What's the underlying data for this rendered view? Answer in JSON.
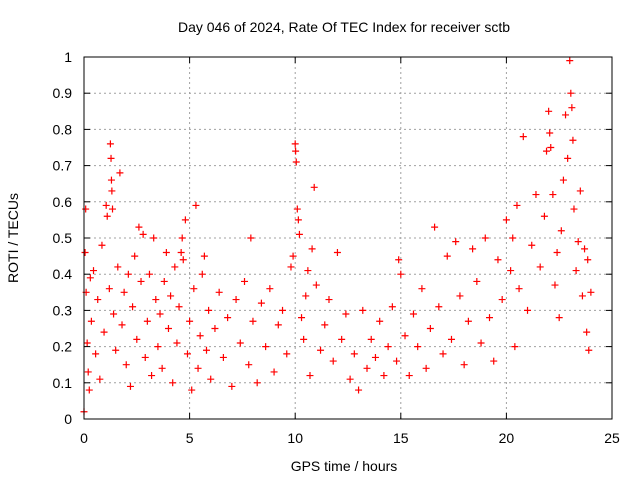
{
  "chart_data": {
    "type": "scatter",
    "title": "Day 046 of 2024, Rate Of TEC Index for receiver sctb",
    "xlabel": "GPS time / hours",
    "ylabel": "ROTI / TECUs",
    "xlim": [
      0,
      25
    ],
    "ylim": [
      0,
      1
    ],
    "x_ticks": [
      0,
      5,
      10,
      15,
      20,
      25
    ],
    "y_ticks": [
      0,
      0.1,
      0.2,
      0.3,
      0.4,
      0.5,
      0.6,
      0.7,
      0.8,
      0.9,
      1
    ],
    "x_tick_labels": [
      "0",
      "5",
      "10",
      "15",
      "20",
      "25"
    ],
    "y_tick_labels": [
      "0",
      "0.1",
      "0.2",
      "0.3",
      "0.4",
      "0.5",
      "0.6",
      "0.7",
      "0.8",
      "0.9",
      "1"
    ],
    "grid": true,
    "marker": "plus",
    "color": "#ff0000",
    "series": [
      {
        "points": [
          [
            0.0,
            0.02
          ],
          [
            0.05,
            0.46
          ],
          [
            0.08,
            0.58
          ],
          [
            0.1,
            0.35
          ],
          [
            0.15,
            0.21
          ],
          [
            0.2,
            0.13
          ],
          [
            0.25,
            0.08
          ],
          [
            0.3,
            0.39
          ],
          [
            0.35,
            0.27
          ],
          [
            0.45,
            0.41
          ],
          [
            0.55,
            0.18
          ],
          [
            0.65,
            0.33
          ],
          [
            0.75,
            0.11
          ],
          [
            0.85,
            0.48
          ],
          [
            0.95,
            0.24
          ],
          [
            1.05,
            0.59
          ],
          [
            1.1,
            0.56
          ],
          [
            1.2,
            0.36
          ],
          [
            1.25,
            0.76
          ],
          [
            1.28,
            0.72
          ],
          [
            1.3,
            0.66
          ],
          [
            1.32,
            0.63
          ],
          [
            1.35,
            0.58
          ],
          [
            1.4,
            0.29
          ],
          [
            1.5,
            0.19
          ],
          [
            1.6,
            0.42
          ],
          [
            1.7,
            0.68
          ],
          [
            1.8,
            0.26
          ],
          [
            1.9,
            0.35
          ],
          [
            2.0,
            0.15
          ],
          [
            2.1,
            0.4
          ],
          [
            2.2,
            0.09
          ],
          [
            2.3,
            0.31
          ],
          [
            2.4,
            0.45
          ],
          [
            2.5,
            0.22
          ],
          [
            2.6,
            0.53
          ],
          [
            2.7,
            0.38
          ],
          [
            2.8,
            0.51
          ],
          [
            2.9,
            0.17
          ],
          [
            3.0,
            0.27
          ],
          [
            3.1,
            0.4
          ],
          [
            3.2,
            0.12
          ],
          [
            3.3,
            0.5
          ],
          [
            3.4,
            0.33
          ],
          [
            3.5,
            0.2
          ],
          [
            3.6,
            0.29
          ],
          [
            3.7,
            0.14
          ],
          [
            3.8,
            0.38
          ],
          [
            3.9,
            0.46
          ],
          [
            4.0,
            0.25
          ],
          [
            4.1,
            0.34
          ],
          [
            4.2,
            0.1
          ],
          [
            4.3,
            0.42
          ],
          [
            4.4,
            0.21
          ],
          [
            4.5,
            0.31
          ],
          [
            4.6,
            0.46
          ],
          [
            4.65,
            0.5
          ],
          [
            4.7,
            0.44
          ],
          [
            4.8,
            0.55
          ],
          [
            4.9,
            0.18
          ],
          [
            5.0,
            0.27
          ],
          [
            5.1,
            0.08
          ],
          [
            5.2,
            0.36
          ],
          [
            5.3,
            0.59
          ],
          [
            5.4,
            0.14
          ],
          [
            5.5,
            0.23
          ],
          [
            5.6,
            0.4
          ],
          [
            5.7,
            0.45
          ],
          [
            5.8,
            0.19
          ],
          [
            5.9,
            0.3
          ],
          [
            6.0,
            0.11
          ],
          [
            6.2,
            0.25
          ],
          [
            6.4,
            0.35
          ],
          [
            6.6,
            0.17
          ],
          [
            6.8,
            0.28
          ],
          [
            7.0,
            0.09
          ],
          [
            7.2,
            0.33
          ],
          [
            7.4,
            0.21
          ],
          [
            7.6,
            0.38
          ],
          [
            7.8,
            0.15
          ],
          [
            7.9,
            0.5
          ],
          [
            8.0,
            0.27
          ],
          [
            8.2,
            0.1
          ],
          [
            8.4,
            0.32
          ],
          [
            8.6,
            0.2
          ],
          [
            8.8,
            0.36
          ],
          [
            9.0,
            0.13
          ],
          [
            9.2,
            0.26
          ],
          [
            9.4,
            0.3
          ],
          [
            9.6,
            0.18
          ],
          [
            9.8,
            0.42
          ],
          [
            9.9,
            0.45
          ],
          [
            10.0,
            0.76
          ],
          [
            10.02,
            0.74
          ],
          [
            10.05,
            0.71
          ],
          [
            10.1,
            0.58
          ],
          [
            10.15,
            0.55
          ],
          [
            10.2,
            0.51
          ],
          [
            10.3,
            0.28
          ],
          [
            10.4,
            0.22
          ],
          [
            10.5,
            0.34
          ],
          [
            10.6,
            0.41
          ],
          [
            10.7,
            0.12
          ],
          [
            10.8,
            0.47
          ],
          [
            10.9,
            0.64
          ],
          [
            11.0,
            0.37
          ],
          [
            11.2,
            0.19
          ],
          [
            11.4,
            0.26
          ],
          [
            11.6,
            0.33
          ],
          [
            11.8,
            0.16
          ],
          [
            12.0,
            0.46
          ],
          [
            12.2,
            0.22
          ],
          [
            12.4,
            0.29
          ],
          [
            12.6,
            0.11
          ],
          [
            12.8,
            0.18
          ],
          [
            13.0,
            0.08
          ],
          [
            13.2,
            0.3
          ],
          [
            13.4,
            0.14
          ],
          [
            13.6,
            0.22
          ],
          [
            13.8,
            0.17
          ],
          [
            14.0,
            0.27
          ],
          [
            14.2,
            0.12
          ],
          [
            14.4,
            0.2
          ],
          [
            14.6,
            0.31
          ],
          [
            14.8,
            0.16
          ],
          [
            14.9,
            0.44
          ],
          [
            15.0,
            0.4
          ],
          [
            15.2,
            0.23
          ],
          [
            15.4,
            0.12
          ],
          [
            15.6,
            0.29
          ],
          [
            15.8,
            0.2
          ],
          [
            16.0,
            0.36
          ],
          [
            16.2,
            0.14
          ],
          [
            16.4,
            0.25
          ],
          [
            16.6,
            0.53
          ],
          [
            16.8,
            0.31
          ],
          [
            17.0,
            0.18
          ],
          [
            17.2,
            0.45
          ],
          [
            17.4,
            0.22
          ],
          [
            17.6,
            0.49
          ],
          [
            17.8,
            0.34
          ],
          [
            18.0,
            0.15
          ],
          [
            18.2,
            0.27
          ],
          [
            18.4,
            0.47
          ],
          [
            18.6,
            0.38
          ],
          [
            18.8,
            0.21
          ],
          [
            19.0,
            0.5
          ],
          [
            19.2,
            0.28
          ],
          [
            19.4,
            0.16
          ],
          [
            19.6,
            0.44
          ],
          [
            19.8,
            0.33
          ],
          [
            20.0,
            0.55
          ],
          [
            20.2,
            0.41
          ],
          [
            20.3,
            0.5
          ],
          [
            20.4,
            0.2
          ],
          [
            20.5,
            0.59
          ],
          [
            20.6,
            0.36
          ],
          [
            20.8,
            0.78
          ],
          [
            21.0,
            0.3
          ],
          [
            21.2,
            0.48
          ],
          [
            21.4,
            0.62
          ],
          [
            21.6,
            0.42
          ],
          [
            21.8,
            0.56
          ],
          [
            21.9,
            0.74
          ],
          [
            22.0,
            0.85
          ],
          [
            22.05,
            0.79
          ],
          [
            22.1,
            0.75
          ],
          [
            22.2,
            0.62
          ],
          [
            22.3,
            0.37
          ],
          [
            22.4,
            0.46
          ],
          [
            22.5,
            0.28
          ],
          [
            22.6,
            0.52
          ],
          [
            22.7,
            0.66
          ],
          [
            22.8,
            0.84
          ],
          [
            22.9,
            0.72
          ],
          [
            23.0,
            0.99
          ],
          [
            23.05,
            0.9
          ],
          [
            23.1,
            0.86
          ],
          [
            23.15,
            0.77
          ],
          [
            23.2,
            0.58
          ],
          [
            23.3,
            0.41
          ],
          [
            23.4,
            0.49
          ],
          [
            23.5,
            0.63
          ],
          [
            23.6,
            0.34
          ],
          [
            23.7,
            0.47
          ],
          [
            23.8,
            0.24
          ],
          [
            23.85,
            0.44
          ],
          [
            23.9,
            0.19
          ],
          [
            24.0,
            0.35
          ]
        ]
      }
    ]
  }
}
